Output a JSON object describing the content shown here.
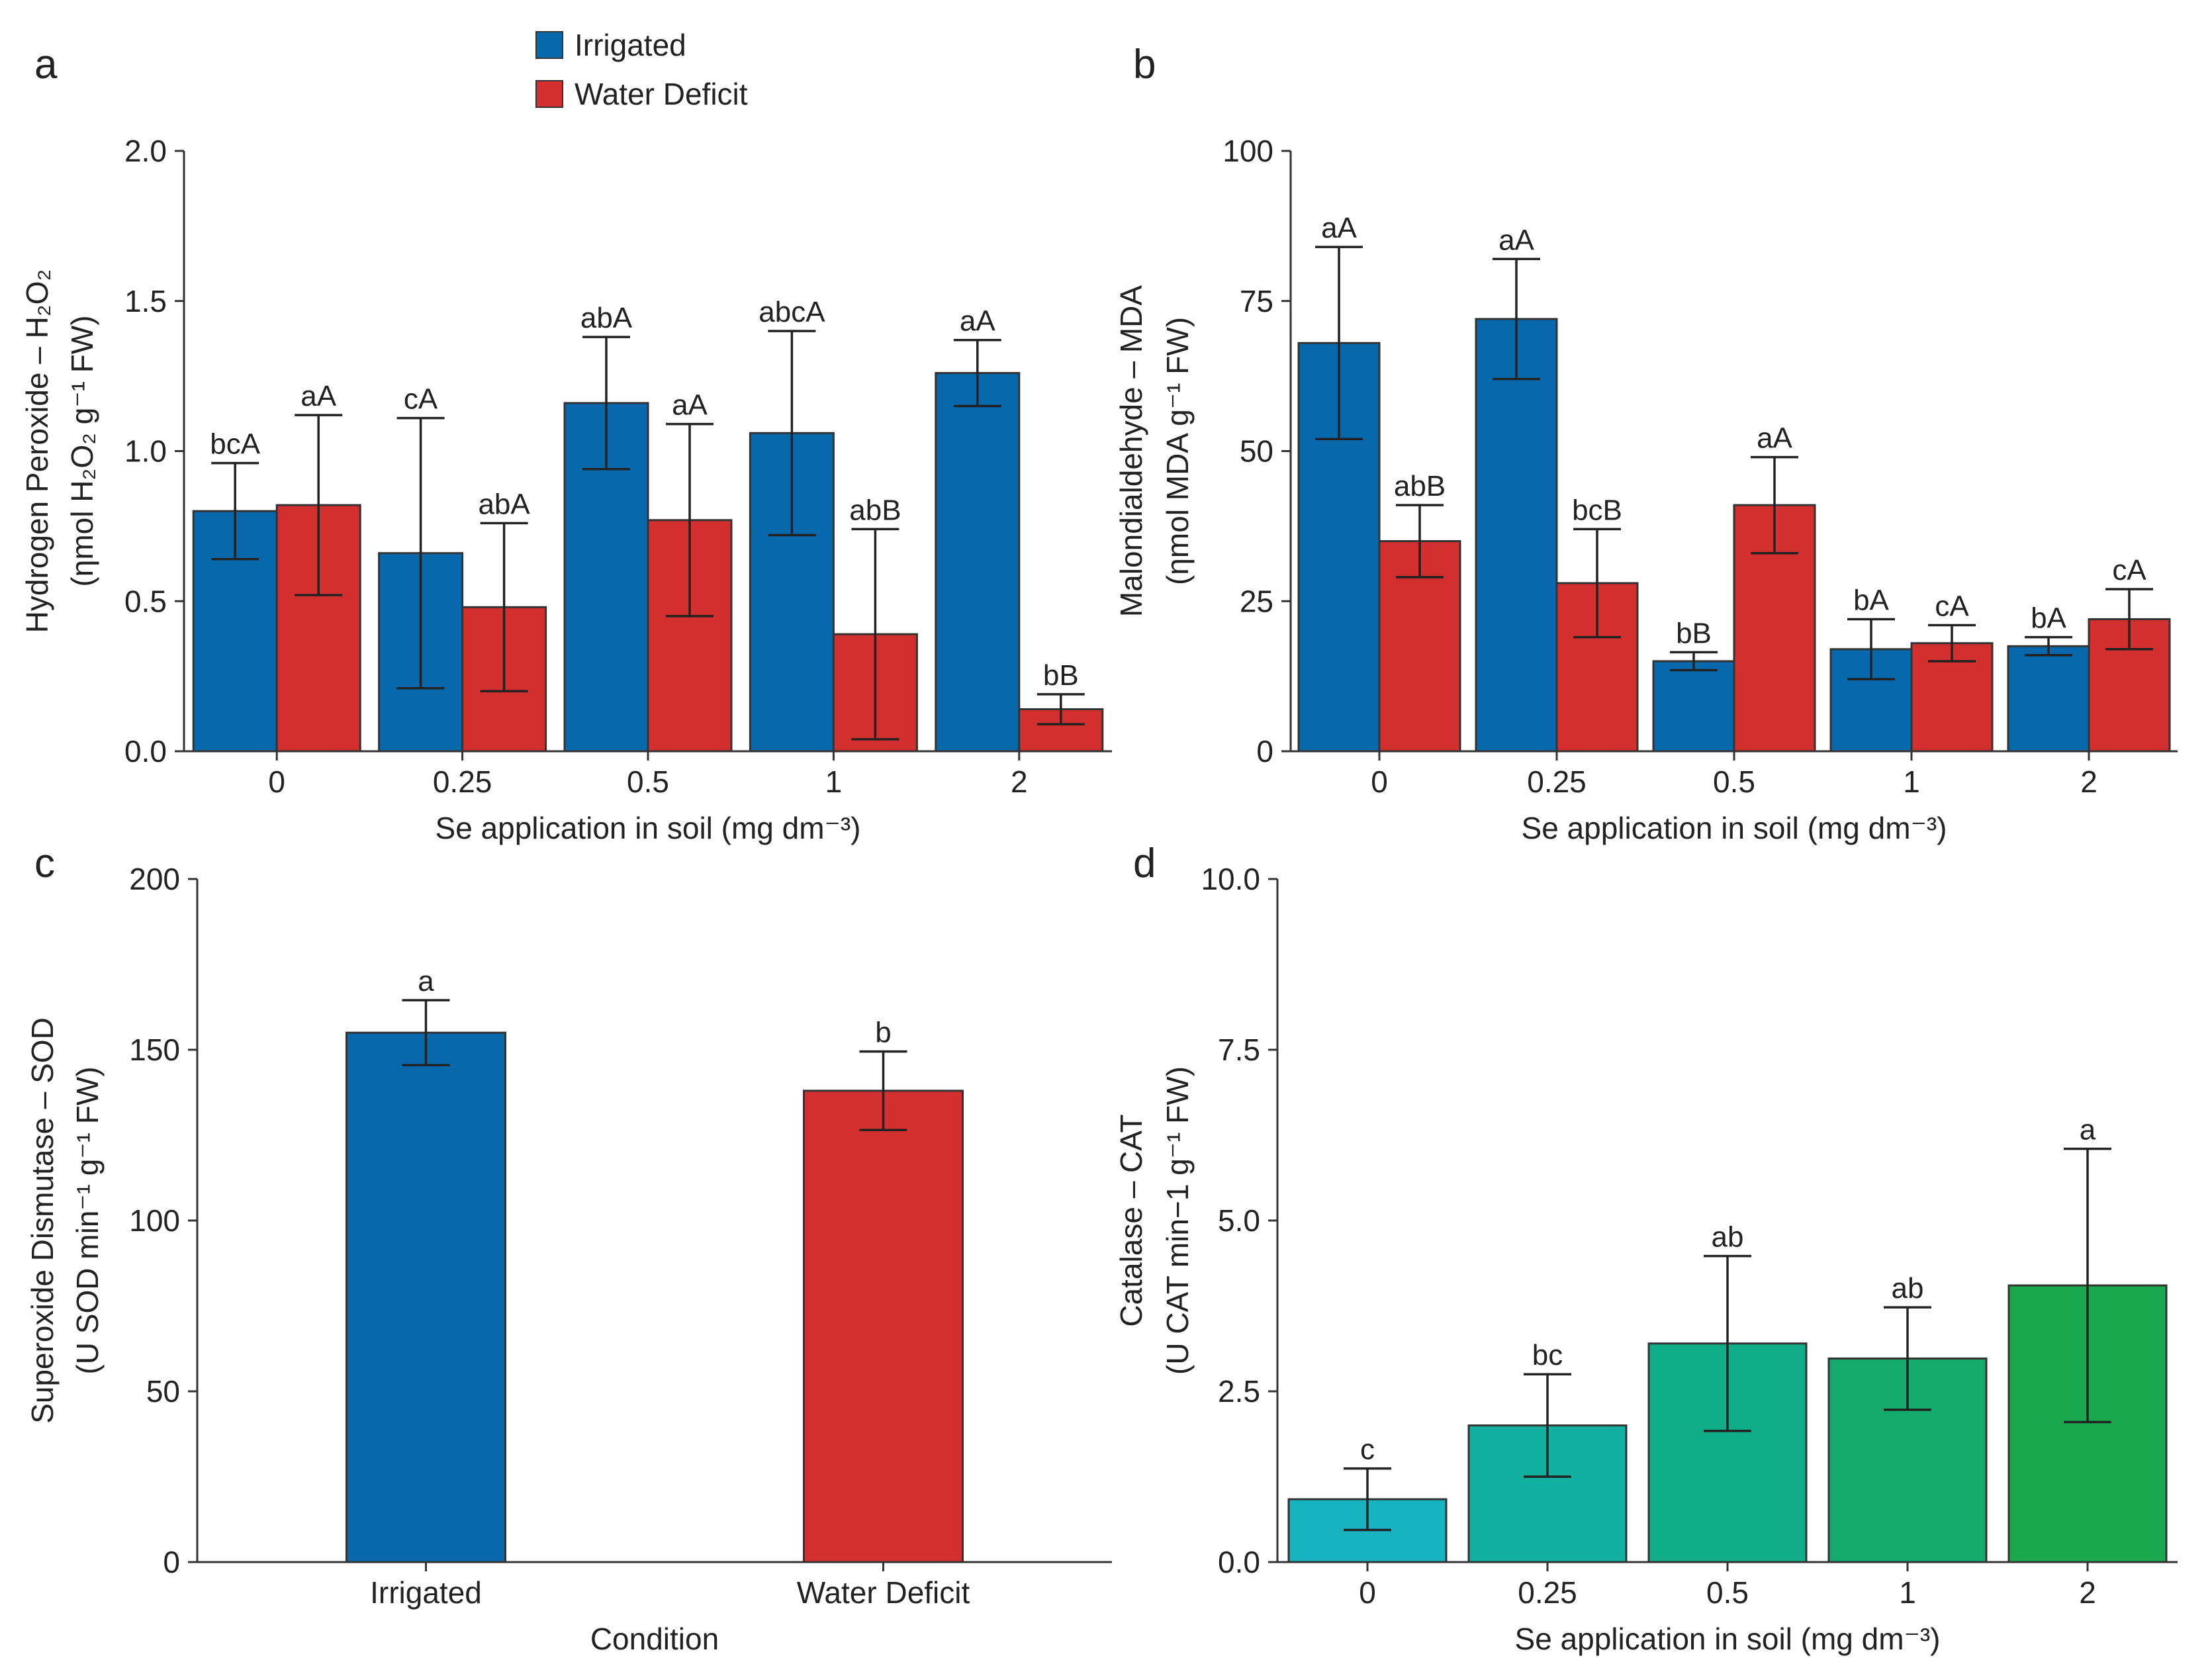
{
  "legend": {
    "items": [
      {
        "label": "Irrigated",
        "color": "#0868ac"
      },
      {
        "label": "Water Deficit",
        "color": "#d32f2f"
      }
    ]
  },
  "chart_data": [
    {
      "panel": "a",
      "type": "bar",
      "grouped": true,
      "xlabel": "Se application in soil (mg dm⁻³)",
      "ylabel_line1": "Hydrogen Peroxide – H₂O₂",
      "ylabel_line2": "(ηmol H₂O₂ g⁻¹ FW)",
      "ylim": [
        0,
        2.0
      ],
      "yticks": [
        "0.0",
        "0.5",
        "1.0",
        "1.5",
        "2.0"
      ],
      "categories": [
        "0",
        "0.25",
        "0.5",
        "1",
        "2"
      ],
      "series": [
        {
          "name": "Irrigated",
          "color": "#0868ac",
          "values": [
            0.8,
            0.66,
            1.16,
            1.06,
            1.26
          ],
          "errors": [
            0.16,
            0.45,
            0.22,
            0.34,
            0.11
          ],
          "labels": [
            "bcA",
            "cA",
            "abA",
            "abcA",
            "aA"
          ]
        },
        {
          "name": "Water Deficit",
          "color": "#d32f2f",
          "values": [
            0.82,
            0.48,
            0.77,
            0.39,
            0.14
          ],
          "errors": [
            0.3,
            0.28,
            0.32,
            0.35,
            0.05
          ],
          "labels": [
            "aA",
            "abA",
            "aA",
            "abB",
            "bB"
          ]
        }
      ]
    },
    {
      "panel": "b",
      "type": "bar",
      "grouped": true,
      "xlabel": "Se application in soil (mg dm⁻³)",
      "ylabel_line1": "Malondialdehyde – MDA",
      "ylabel_line2": "(ηmol MDA g⁻¹ FW)",
      "ylim": [
        0,
        100
      ],
      "yticks": [
        "0",
        "25",
        "50",
        "75",
        "100"
      ],
      "categories": [
        "0",
        "0.25",
        "0.5",
        "1",
        "2"
      ],
      "series": [
        {
          "name": "Irrigated",
          "color": "#0868ac",
          "values": [
            68,
            72,
            15,
            17,
            17.5
          ],
          "errors": [
            16,
            10,
            1.5,
            5,
            1.5
          ],
          "labels": [
            "aA",
            "aA",
            "bB",
            "bA",
            "bA"
          ]
        },
        {
          "name": "Water Deficit",
          "color": "#d32f2f",
          "values": [
            35,
            28,
            41,
            18,
            22
          ],
          "errors": [
            6,
            9,
            8,
            3,
            5
          ],
          "labels": [
            "abB",
            "bcB",
            "aA",
            "cA",
            "cA"
          ]
        }
      ]
    },
    {
      "panel": "c",
      "type": "bar",
      "grouped": false,
      "xlabel": "Condition",
      "ylabel_line1": "Superoxide Dismutase – SOD",
      "ylabel_line2": "(U SOD min⁻¹ g⁻¹ FW)",
      "ylim": [
        0,
        200
      ],
      "yticks": [
        "0",
        "50",
        "100",
        "150",
        "200"
      ],
      "categories": [
        "Irrigated",
        "Water Deficit"
      ],
      "colors": [
        "#0868ac",
        "#d32f2f"
      ],
      "values": [
        155,
        138
      ],
      "errors": [
        9.5,
        11.5
      ],
      "labels": [
        "a",
        "b"
      ]
    },
    {
      "panel": "d",
      "type": "bar",
      "grouped": false,
      "xlabel": "Se application in soil (mg dm⁻³)",
      "ylabel_line1": "Catalase – CAT",
      "ylabel_line2": "(U CAT min−1 g⁻¹ FW)",
      "ylim": [
        0,
        10.0
      ],
      "yticks": [
        "0.0",
        "2.5",
        "5.0",
        "7.5",
        "10.0"
      ],
      "categories": [
        "0",
        "0.25",
        "0.5",
        "1",
        "2"
      ],
      "colors": [
        "#17b3c1",
        "#12b0a0",
        "#10ad86",
        "#14ab6c",
        "#1aa84e"
      ],
      "values": [
        0.92,
        2.0,
        3.2,
        2.98,
        4.05
      ],
      "errors": [
        0.45,
        0.75,
        1.28,
        0.75,
        2.0
      ],
      "labels": [
        "c",
        "bc",
        "ab",
        "ab",
        "a"
      ]
    }
  ]
}
